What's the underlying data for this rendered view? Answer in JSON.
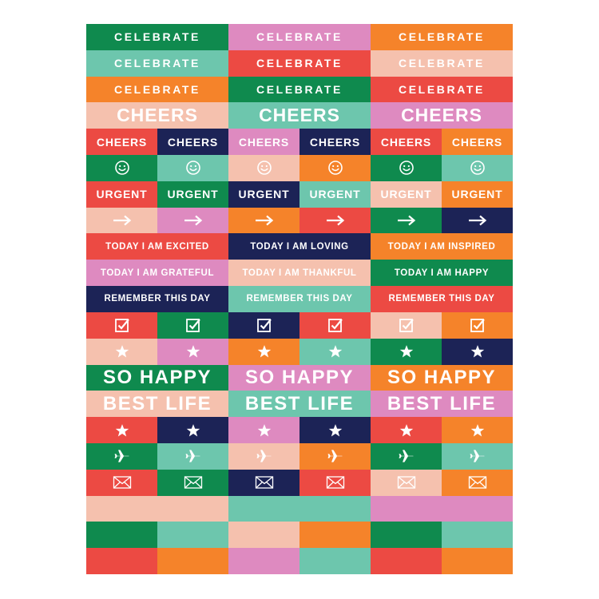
{
  "colors": {
    "green": "#0f8a4e",
    "mint": "#6dc6ad",
    "orange": "#f5832a",
    "red": "#ec4a43",
    "pink": "#f5c1ae",
    "lilac": "#de8ac0",
    "navy": "#1c2356"
  },
  "rows": [
    {
      "type": "wide3",
      "style": "celebrate",
      "cells": [
        {
          "text": "CELEBRATE",
          "bg": "green"
        },
        {
          "text": "CELEBRATE",
          "bg": "lilac"
        },
        {
          "text": "CELEBRATE",
          "bg": "orange"
        }
      ]
    },
    {
      "type": "wide3",
      "style": "celebrate",
      "cells": [
        {
          "text": "CELEBRATE",
          "bg": "mint"
        },
        {
          "text": "CELEBRATE",
          "bg": "red"
        },
        {
          "text": "CELEBRATE",
          "bg": "pink"
        }
      ]
    },
    {
      "type": "wide3",
      "style": "celebrate",
      "cells": [
        {
          "text": "CELEBRATE",
          "bg": "orange"
        },
        {
          "text": "CELEBRATE",
          "bg": "green"
        },
        {
          "text": "CELEBRATE",
          "bg": "red"
        }
      ]
    },
    {
      "type": "wide3",
      "style": "cheers-big",
      "cells": [
        {
          "text": "CHEERS",
          "bg": "pink"
        },
        {
          "text": "CHEERS",
          "bg": "mint"
        },
        {
          "text": "CHEERS",
          "bg": "lilac"
        }
      ]
    },
    {
      "type": "narrow6",
      "style": "small-word",
      "cells": [
        {
          "text": "CHEERS",
          "bg": "red"
        },
        {
          "text": "CHEERS",
          "bg": "navy"
        },
        {
          "text": "CHEERS",
          "bg": "lilac"
        },
        {
          "text": "CHEERS",
          "bg": "navy"
        },
        {
          "text": "CHEERS",
          "bg": "red"
        },
        {
          "text": "CHEERS",
          "bg": "orange"
        }
      ]
    },
    {
      "type": "narrow6",
      "style": "icon",
      "icon": "smiley-icon",
      "cells": [
        {
          "bg": "green"
        },
        {
          "bg": "mint"
        },
        {
          "bg": "pink"
        },
        {
          "bg": "orange"
        },
        {
          "bg": "green"
        },
        {
          "bg": "mint"
        }
      ]
    },
    {
      "type": "narrow6",
      "style": "small-word",
      "cells": [
        {
          "text": "URGENT",
          "bg": "red"
        },
        {
          "text": "URGENT",
          "bg": "green"
        },
        {
          "text": "URGENT",
          "bg": "navy"
        },
        {
          "text": "URGENT",
          "bg": "mint"
        },
        {
          "text": "URGENT",
          "bg": "pink"
        },
        {
          "text": "URGENT",
          "bg": "orange"
        }
      ]
    },
    {
      "type": "narrow6",
      "style": "icon",
      "icon": "arrow-right-icon",
      "cells": [
        {
          "bg": "pink"
        },
        {
          "bg": "lilac"
        },
        {
          "bg": "orange"
        },
        {
          "bg": "red"
        },
        {
          "bg": "green"
        },
        {
          "bg": "navy"
        }
      ]
    },
    {
      "type": "wide3",
      "style": "today",
      "cells": [
        {
          "text": "TODAY I AM EXCITED",
          "bg": "red"
        },
        {
          "text": "TODAY I AM LOVING",
          "bg": "navy"
        },
        {
          "text": "TODAY I AM INSPIRED",
          "bg": "orange"
        }
      ]
    },
    {
      "type": "wide3",
      "style": "today",
      "cells": [
        {
          "text": "TODAY I AM GRATEFUL",
          "bg": "lilac"
        },
        {
          "text": "TODAY I AM THANKFUL",
          "bg": "pink"
        },
        {
          "text": "TODAY I AM HAPPY",
          "bg": "green"
        }
      ]
    },
    {
      "type": "wide3",
      "style": "today",
      "cells": [
        {
          "text": "REMEMBER THIS DAY",
          "bg": "navy"
        },
        {
          "text": "REMEMBER THIS DAY",
          "bg": "mint"
        },
        {
          "text": "REMEMBER THIS DAY",
          "bg": "red"
        }
      ]
    },
    {
      "type": "narrow6",
      "style": "icon",
      "icon": "checkbox-icon",
      "cells": [
        {
          "bg": "red"
        },
        {
          "bg": "green"
        },
        {
          "bg": "navy"
        },
        {
          "bg": "red"
        },
        {
          "bg": "pink"
        },
        {
          "bg": "orange"
        }
      ]
    },
    {
      "type": "narrow6",
      "style": "icon",
      "icon": "star-icon",
      "cells": [
        {
          "bg": "pink"
        },
        {
          "bg": "lilac"
        },
        {
          "bg": "orange"
        },
        {
          "bg": "mint"
        },
        {
          "bg": "green"
        },
        {
          "bg": "navy"
        }
      ]
    },
    {
      "type": "wide3",
      "style": "big",
      "cells": [
        {
          "text": "SO HAPPY",
          "bg": "green"
        },
        {
          "text": "SO HAPPY",
          "bg": "lilac"
        },
        {
          "text": "SO HAPPY",
          "bg": "orange"
        }
      ]
    },
    {
      "type": "wide3",
      "style": "big",
      "cells": [
        {
          "text": "BEST LIFE",
          "bg": "pink"
        },
        {
          "text": "BEST LIFE",
          "bg": "mint"
        },
        {
          "text": "BEST LIFE",
          "bg": "lilac"
        }
      ]
    },
    {
      "type": "narrow6",
      "style": "icon",
      "icon": "star-icon",
      "cells": [
        {
          "bg": "red"
        },
        {
          "bg": "navy"
        },
        {
          "bg": "lilac"
        },
        {
          "bg": "navy"
        },
        {
          "bg": "red"
        },
        {
          "bg": "orange"
        }
      ]
    },
    {
      "type": "narrow6",
      "style": "icon",
      "icon": "airplane-icon",
      "cells": [
        {
          "bg": "green"
        },
        {
          "bg": "mint"
        },
        {
          "bg": "pink"
        },
        {
          "bg": "orange"
        },
        {
          "bg": "green"
        },
        {
          "bg": "mint"
        }
      ]
    },
    {
      "type": "narrow6",
      "style": "icon",
      "icon": "envelope-icon",
      "cells": [
        {
          "bg": "red"
        },
        {
          "bg": "green"
        },
        {
          "bg": "navy"
        },
        {
          "bg": "red"
        },
        {
          "bg": "pink"
        },
        {
          "bg": "orange"
        }
      ]
    },
    {
      "type": "blank",
      "cells": [
        {
          "bg": "pink",
          "span": 2
        },
        {
          "bg": "mint",
          "span": 2
        },
        {
          "bg": "lilac",
          "span": 2
        }
      ]
    },
    {
      "type": "blank",
      "cells": [
        {
          "bg": "green",
          "span": 1
        },
        {
          "bg": "mint",
          "span": 1
        },
        {
          "bg": "pink",
          "span": 1
        },
        {
          "bg": "orange",
          "span": 1
        },
        {
          "bg": "green",
          "span": 1
        },
        {
          "bg": "mint",
          "span": 1
        }
      ]
    },
    {
      "type": "blank",
      "cells": [
        {
          "bg": "red",
          "span": 1
        },
        {
          "bg": "orange",
          "span": 1
        },
        {
          "bg": "lilac",
          "span": 1
        },
        {
          "bg": "mint",
          "span": 1
        },
        {
          "bg": "red",
          "span": 1
        },
        {
          "bg": "orange",
          "span": 1
        }
      ]
    }
  ]
}
